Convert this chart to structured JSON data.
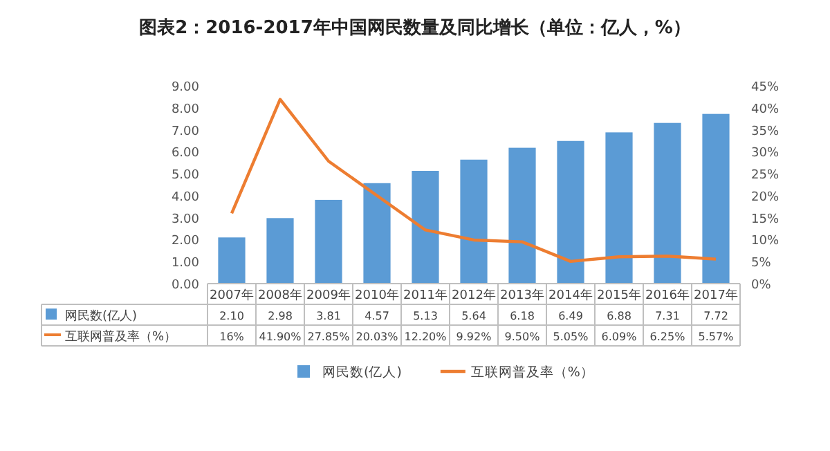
{
  "chart_data": {
    "type": "bar",
    "title": "图表2：2016-2017年中国网民数量及同比增长（单位：亿人，%）",
    "categories": [
      "2007年",
      "2008年",
      "2009年",
      "2010年",
      "2011年",
      "2012年",
      "2013年",
      "2014年",
      "2015年",
      "2016年",
      "2017年"
    ],
    "series": [
      {
        "name": "网民数(亿人)",
        "color": "#5b9bd5",
        "values": [
          2.1,
          2.98,
          3.81,
          4.57,
          5.13,
          5.64,
          6.18,
          6.49,
          6.88,
          7.31,
          7.72
        ],
        "value_labels": [
          "2.10",
          "2.98",
          "3.81",
          "4.57",
          "5.13",
          "5.64",
          "6.18",
          "6.49",
          "6.88",
          "7.31",
          "7.72"
        ]
      },
      {
        "name": "互联网普及率（%）",
        "color": "#ed7d31",
        "type": "line",
        "axis": "y2",
        "values": [
          16,
          41.9,
          27.85,
          20.03,
          12.2,
          9.92,
          9.5,
          5.05,
          6.09,
          6.25,
          5.57
        ],
        "value_labels": [
          "16%",
          "41.90%",
          "27.85%",
          "20.03%",
          "12.20%",
          "9.92%",
          "9.50%",
          "5.05%",
          "6.09%",
          "6.25%",
          "5.57%"
        ]
      }
    ],
    "ylim": [
      0,
      9
    ],
    "yticks": [
      {
        "value": 0,
        "label": "0.00"
      },
      {
        "value": 1,
        "label": "1.00"
      },
      {
        "value": 2,
        "label": "2.00"
      },
      {
        "value": 3,
        "label": "3.00"
      },
      {
        "value": 4,
        "label": "4.00"
      },
      {
        "value": 5,
        "label": "5.00"
      },
      {
        "value": 6,
        "label": "6.00"
      },
      {
        "value": 7,
        "label": "7.00"
      },
      {
        "value": 8,
        "label": "8.00"
      },
      {
        "value": 9,
        "label": "9.00"
      }
    ],
    "y2lim": [
      0,
      45
    ],
    "y2ticks": [
      {
        "value": 0,
        "label": "0%"
      },
      {
        "value": 5,
        "label": "5%"
      },
      {
        "value": 10,
        "label": "10%"
      },
      {
        "value": 15,
        "label": "15%"
      },
      {
        "value": 20,
        "label": "20%"
      },
      {
        "value": 25,
        "label": "25%"
      },
      {
        "value": 30,
        "label": "30%"
      },
      {
        "value": 35,
        "label": "35%"
      },
      {
        "value": 40,
        "label": "40%"
      },
      {
        "value": 45,
        "label": "45%"
      }
    ],
    "legend": "bottom"
  }
}
